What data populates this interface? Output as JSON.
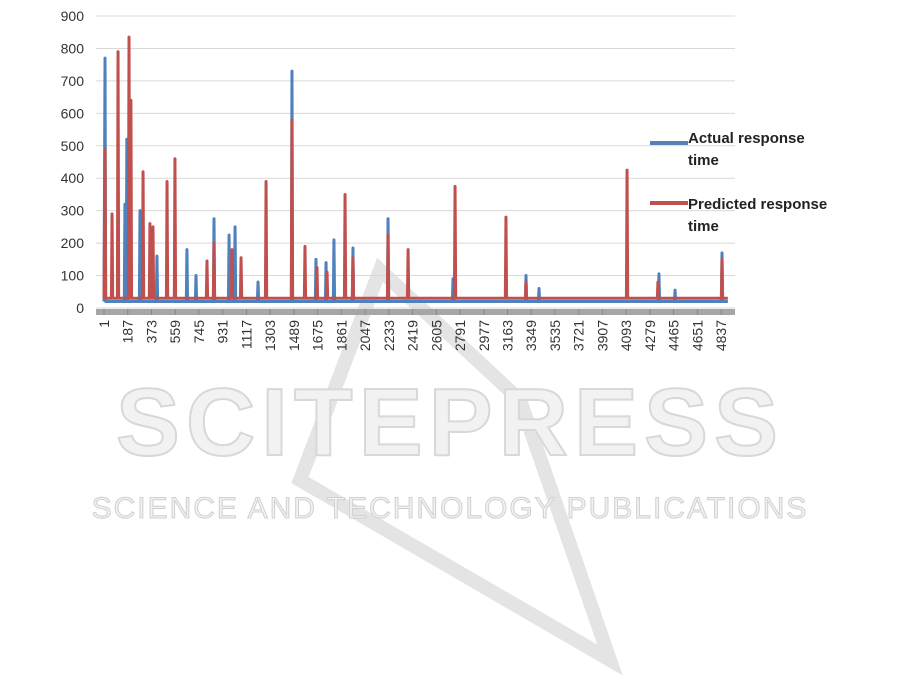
{
  "chart_data": {
    "type": "line",
    "xlim": [
      1,
      4891
    ],
    "xticks": [
      1,
      187,
      373,
      559,
      745,
      931,
      1117,
      1303,
      1489,
      1675,
      1861,
      2047,
      2233,
      2419,
      2605,
      2791,
      2977,
      3163,
      3349,
      3535,
      3721,
      3907,
      4093,
      4279,
      4465,
      4651,
      4837
    ],
    "ylim": [
      0,
      900
    ],
    "yticks": [
      0,
      100,
      200,
      300,
      400,
      500,
      600,
      700,
      800,
      900
    ],
    "grid": true,
    "legend": "right",
    "series": [
      {
        "name": "Actual response time",
        "color": "#4f81bd",
        "x": [
          1,
          9,
          14,
          160,
          165,
          170,
          175,
          180,
          185,
          278,
          283,
          288,
          411,
          416,
          421,
          646,
          651,
          656,
          717,
          722,
          727,
          858,
          863,
          868,
          976,
          981,
          986,
          1023,
          1028,
          1033,
          1203,
          1208,
          1213,
          1469,
          1474,
          1479,
          1657,
          1662,
          1667,
          1736,
          1741,
          1746,
          1798,
          1803,
          1808,
          1947,
          1952,
          1957,
          2222,
          2227,
          2232,
          2731,
          2736,
          2741,
          3303,
          3308,
          3313,
          3405,
          3410,
          3415,
          4345,
          4350,
          4355,
          4471,
          4476,
          4481,
          4839,
          4844,
          4849,
          4890
        ],
        "values": [
          20,
          770,
          20,
          20,
          320,
          20,
          20,
          520,
          20,
          20,
          300,
          20,
          20,
          160,
          20,
          20,
          180,
          20,
          20,
          100,
          20,
          20,
          275,
          20,
          20,
          225,
          20,
          20,
          250,
          20,
          20,
          80,
          20,
          20,
          730,
          20,
          20,
          150,
          20,
          20,
          140,
          20,
          20,
          210,
          20,
          20,
          185,
          20,
          20,
          275,
          20,
          20,
          90,
          20,
          20,
          100,
          20,
          20,
          60,
          20,
          20,
          105,
          20,
          20,
          55,
          20,
          20,
          170,
          20,
          20
        ]
      },
      {
        "name": "Predicted response time",
        "color": "#c0504d",
        "x": [
          1,
          9,
          14,
          59,
          64,
          69,
          106,
          111,
          116,
          192,
          197,
          202,
          207,
          212,
          217,
          302,
          307,
          312,
          356,
          361,
          366,
          380,
          385,
          390,
          490,
          495,
          500,
          552,
          557,
          562,
          803,
          808,
          813,
          858,
          863,
          868,
          999,
          1004,
          1009,
          1070,
          1075,
          1080,
          1266,
          1271,
          1276,
          1469,
          1474,
          1479,
          1571,
          1576,
          1581,
          1665,
          1670,
          1675,
          1744,
          1749,
          1754,
          1885,
          1890,
          1895,
          1947,
          1952,
          1957,
          2222,
          2227,
          2232,
          2379,
          2384,
          2389,
          2747,
          2752,
          2757,
          3146,
          3151,
          3156,
          3303,
          3308,
          3313,
          4095,
          4100,
          4105,
          4337,
          4342,
          4347,
          4839,
          4844,
          4849,
          4890
        ],
        "values": [
          30,
          490,
          30,
          30,
          290,
          30,
          30,
          790,
          30,
          30,
          835,
          30,
          30,
          640,
          30,
          30,
          420,
          30,
          30,
          260,
          30,
          30,
          250,
          30,
          30,
          390,
          30,
          30,
          460,
          30,
          30,
          145,
          30,
          30,
          200,
          30,
          30,
          180,
          30,
          30,
          155,
          30,
          30,
          390,
          30,
          30,
          580,
          30,
          30,
          190,
          30,
          30,
          125,
          30,
          30,
          110,
          30,
          30,
          350,
          30,
          30,
          155,
          30,
          30,
          225,
          30,
          30,
          180,
          30,
          30,
          375,
          30,
          30,
          280,
          30,
          30,
          80,
          30,
          30,
          425,
          30,
          30,
          80,
          30,
          30,
          150,
          30,
          30
        ]
      }
    ]
  },
  "watermark": {
    "title": "SCITEPRESS",
    "subtitle": "SCIENCE AND TECHNOLOGY PUBLICATIONS"
  }
}
